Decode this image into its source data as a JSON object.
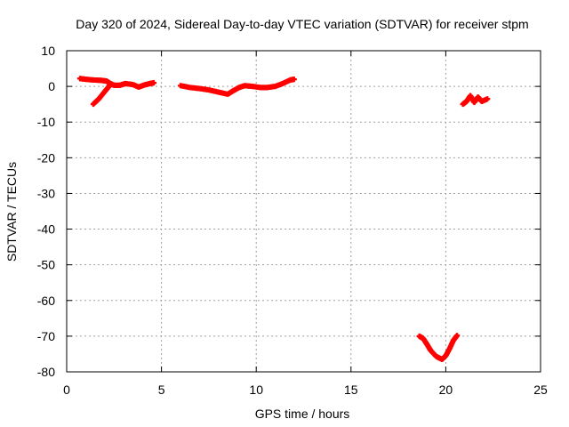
{
  "chart_data": {
    "type": "scatter",
    "title": "Day 320 of 2024, Sidereal Day-to-day VTEC variation (SDTVAR) for receiver stpm",
    "xlabel": "GPS time / hours",
    "ylabel": "SDTVAR / TECUs",
    "xlim": [
      0,
      25
    ],
    "ylim": [
      -80,
      10
    ],
    "xticks": [
      0,
      5,
      10,
      15,
      20,
      25
    ],
    "yticks": [
      10,
      0,
      -10,
      -20,
      -30,
      -40,
      -50,
      -60,
      -70,
      -80
    ],
    "grid": true,
    "series_color": "#ff0000",
    "series": [
      {
        "name": "stpm",
        "segments": [
          [
            [
              0.7,
              2.2
            ],
            [
              1.0,
              2.0
            ],
            [
              1.4,
              1.8
            ],
            [
              1.8,
              1.7
            ],
            [
              2.1,
              1.5
            ],
            [
              2.3,
              0.8
            ],
            [
              2.5,
              0.3
            ],
            [
              2.8,
              0.3
            ],
            [
              3.1,
              0.8
            ],
            [
              3.5,
              0.5
            ],
            [
              3.8,
              -0.2
            ],
            [
              4.1,
              0.4
            ],
            [
              4.4,
              0.8
            ],
            [
              4.6,
              1.0
            ]
          ],
          [
            [
              1.4,
              -5.0
            ],
            [
              1.7,
              -3.5
            ],
            [
              2.0,
              -1.5
            ],
            [
              2.2,
              -0.2
            ],
            [
              2.3,
              0.5
            ]
          ],
          [
            [
              6.0,
              0.2
            ],
            [
              6.5,
              -0.3
            ],
            [
              7.0,
              -0.6
            ],
            [
              7.5,
              -1.0
            ],
            [
              8.0,
              -1.6
            ],
            [
              8.5,
              -2.2
            ],
            [
              8.8,
              -1.2
            ],
            [
              9.1,
              -0.3
            ],
            [
              9.4,
              0.2
            ],
            [
              9.8,
              0.0
            ],
            [
              10.2,
              -0.3
            ],
            [
              10.6,
              -0.3
            ],
            [
              11.0,
              0.0
            ],
            [
              11.4,
              0.8
            ],
            [
              11.8,
              1.8
            ],
            [
              12.0,
              2.0
            ]
          ],
          [
            [
              18.6,
              -70.0
            ],
            [
              18.8,
              -70.6
            ],
            [
              19.0,
              -72.2
            ],
            [
              19.2,
              -74.0
            ],
            [
              19.5,
              -75.7
            ],
            [
              19.8,
              -76.5
            ],
            [
              20.0,
              -75.5
            ],
            [
              20.2,
              -73.5
            ],
            [
              20.4,
              -71.2
            ],
            [
              20.6,
              -69.8
            ]
          ],
          [
            [
              20.9,
              -5.0
            ],
            [
              21.1,
              -4.2
            ],
            [
              21.3,
              -2.6
            ],
            [
              21.5,
              -4.5
            ],
            [
              21.7,
              -3.0
            ],
            [
              21.9,
              -4.2
            ],
            [
              22.2,
              -3.5
            ]
          ]
        ]
      }
    ]
  }
}
